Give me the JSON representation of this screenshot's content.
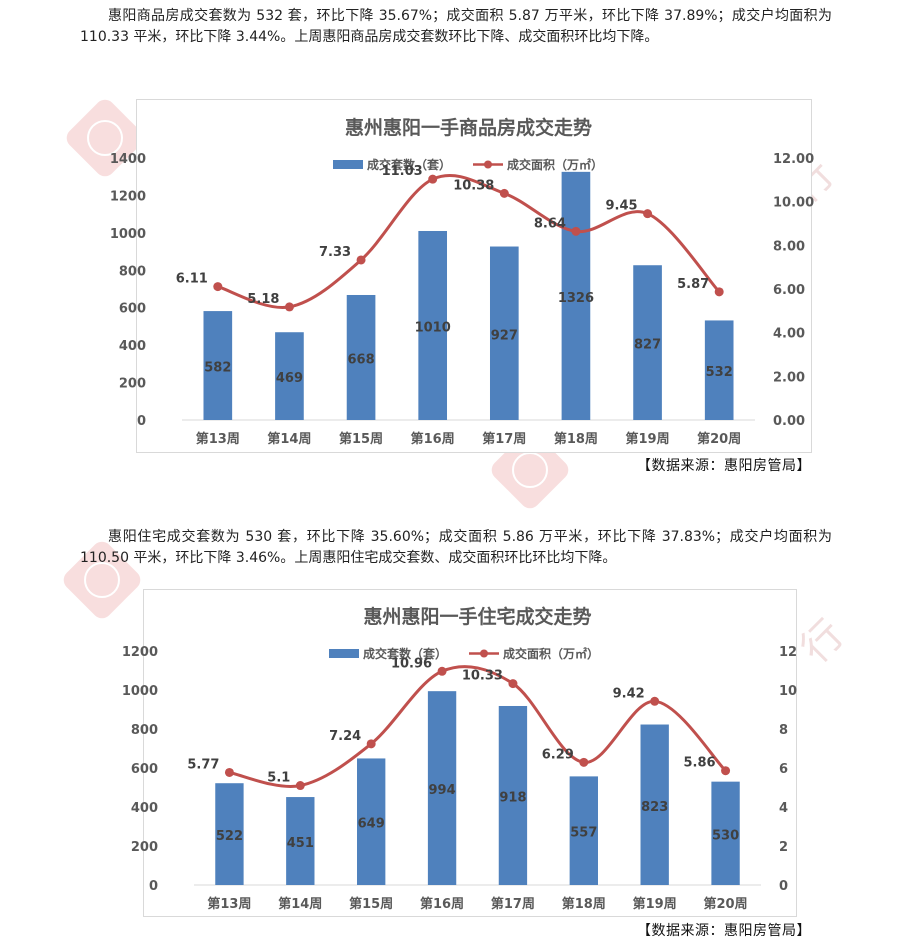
{
  "paragraphs": {
    "p1": "惠阳商品房成交套数为 532 套，环比下降 35.67%；成交面积 5.87 万平米，环比下降 37.89%；成交户均面积为 110.33 平米，环比下降 3.44%。上周惠阳商品房成交套数环比下降、成交面积环比均下降。",
    "p2": "惠阳住宅成交套数为 530 套，环比下降 35.60%；成交面积 5.86 万平米，环比下降 37.83%；成交户均面积为 110.50 平米，环比下降 3.46%。上周惠阳住宅成交套数、成交面积环比环比均下降。"
  },
  "sources": {
    "s1": "【数据来源：惠阳房管局】",
    "s2": "【数据来源：惠阳房管局】"
  },
  "watermark": {
    "text": "世联行"
  },
  "colors": {
    "bar": "#4f81bd",
    "line": "#c0504d",
    "grid": "#d9d9d9",
    "title": "#595959",
    "axis_text": "#595959"
  },
  "chart_data": [
    {
      "type": "bar",
      "title": "惠州惠阳一手商品房成交走势",
      "categories": [
        "第13周",
        "第14周",
        "第15周",
        "第16周",
        "第17周",
        "第18周",
        "第19周",
        "第20周"
      ],
      "series": [
        {
          "name": "成交套数（套）",
          "type": "bar",
          "axis": "left",
          "values": [
            582,
            469,
            668,
            1010,
            927,
            1326,
            827,
            532
          ]
        },
        {
          "name": "成交面积（万㎡）",
          "type": "line",
          "axis": "right",
          "values": [
            6.11,
            5.18,
            7.33,
            11.03,
            10.38,
            8.64,
            9.45,
            5.87
          ]
        }
      ],
      "y_left": {
        "min": 0,
        "max": 1400,
        "step": 200,
        "ticks": [
          "0",
          "200",
          "400",
          "600",
          "800",
          "1000",
          "1200",
          "1400"
        ]
      },
      "y_right": {
        "min": 0,
        "max": 12,
        "step": 2,
        "ticks": [
          "0.00",
          "2.00",
          "4.00",
          "6.00",
          "8.00",
          "10.00",
          "12.00"
        ]
      },
      "grid": false,
      "legend": "top-center"
    },
    {
      "type": "bar",
      "title": "惠州惠阳一手住宅成交走势",
      "categories": [
        "第13周",
        "第14周",
        "第15周",
        "第16周",
        "第17周",
        "第18周",
        "第19周",
        "第20周"
      ],
      "series": [
        {
          "name": "成交套数（套）",
          "type": "bar",
          "axis": "left",
          "values": [
            522,
            451,
            649,
            994,
            918,
            557,
            823,
            530
          ]
        },
        {
          "name": "成交面积（万㎡）",
          "type": "line",
          "axis": "right",
          "values": [
            5.77,
            5.1,
            7.24,
            10.96,
            10.33,
            6.29,
            9.42,
            5.86
          ]
        }
      ],
      "y_left": {
        "min": 0,
        "max": 1200,
        "step": 200,
        "ticks": [
          "0",
          "200",
          "400",
          "600",
          "800",
          "1000",
          "1200"
        ]
      },
      "y_right": {
        "min": 0,
        "max": 12,
        "step": 2,
        "ticks": [
          "0",
          "2",
          "4",
          "6",
          "8",
          "10",
          "12"
        ]
      },
      "grid": false,
      "legend": "top-center"
    }
  ]
}
